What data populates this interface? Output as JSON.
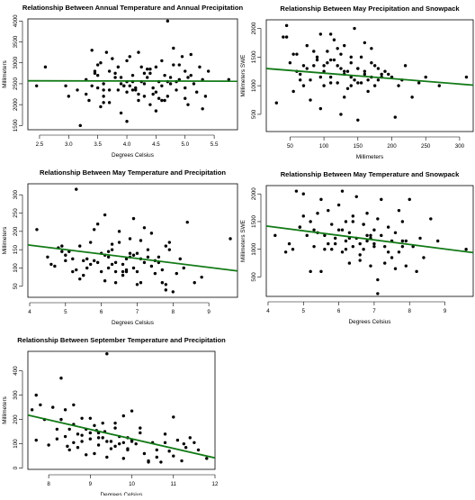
{
  "chart_data": [
    {
      "type": "scatter",
      "title": "Relationship Between Annual Temperature and Annual Precipitation",
      "xlabel": "Degrees Celsius",
      "ylabel": "Millimeters",
      "xlim": [
        2.3,
        5.9
      ],
      "ylim": [
        1400,
        4050
      ],
      "xticks": [
        2.5,
        3.0,
        3.5,
        4.0,
        4.5,
        5.0,
        5.5
      ],
      "xtick_labels": [
        "2.5",
        "3.0",
        "3.5",
        "4.0",
        "4.5",
        "5.0",
        "5.5"
      ],
      "yticks": [
        1500,
        2000,
        2500,
        3000,
        3500,
        4000
      ],
      "ytick_labels": [
        "1500",
        "2000",
        "2500",
        "3000",
        "3500",
        "4000"
      ],
      "trend": {
        "x0": 2.3,
        "y0": 2570,
        "x1": 5.9,
        "y1": 2560
      },
      "x": [
        2.45,
        2.6,
        3.0,
        3.2,
        3.3,
        3.35,
        3.4,
        3.45,
        3.5,
        3.5,
        3.55,
        3.6,
        3.6,
        3.65,
        3.7,
        3.7,
        3.75,
        3.8,
        3.85,
        3.9,
        3.9,
        3.95,
        4.0,
        4.0,
        4.05,
        4.1,
        4.1,
        4.15,
        4.2,
        4.2,
        4.25,
        4.3,
        4.3,
        4.35,
        4.4,
        4.4,
        4.45,
        4.5,
        4.5,
        4.55,
        4.6,
        4.6,
        4.65,
        4.7,
        4.7,
        4.75,
        4.8,
        4.85,
        4.9,
        4.95,
        5.0,
        5.0,
        5.05,
        5.1,
        5.15,
        5.2,
        5.25,
        5.3,
        5.35,
        5.4,
        3.4,
        3.6,
        3.8,
        4.0,
        4.2,
        4.4,
        4.6,
        4.8,
        5.0,
        3.5,
        3.7,
        3.9,
        4.1,
        4.3,
        4.5,
        4.7,
        4.9,
        3.3,
        3.6,
        4.05,
        4.35,
        4.55,
        4.75,
        5.1,
        3.45,
        3.85,
        4.25,
        4.65,
        5.05,
        4.15,
        3.55,
        3.95,
        4.45,
        4.85,
        5.3,
        4.0,
        5.75,
        2.95,
        3.15
      ],
      "y": [
        2450,
        2900,
        2200,
        1500,
        2600,
        2100,
        3300,
        2800,
        2700,
        2400,
        3000,
        2500,
        2200,
        3250,
        2350,
        2800,
        3100,
        2650,
        2900,
        1800,
        2500,
        2450,
        1600,
        2300,
        3150,
        2700,
        2550,
        2400,
        3250,
        2100,
        2900,
        2500,
        2200,
        2650,
        2000,
        2750,
        2400,
        2300,
        2900,
        2550,
        2100,
        3050,
        2700,
        4000,
        2200,
        2500,
        2950,
        2350,
        2600,
        3150,
        2400,
        2800,
        2000,
        2700,
        2500,
        2300,
        2900,
        2600,
        2200,
        2800,
        2450,
        2350,
        2750,
        2550,
        2250,
        2850,
        2450,
        3350,
        2150,
        2950,
        2050,
        2650,
        2350,
        2750,
        1850,
        2550,
        2950,
        2250,
        2050,
        2450,
        2850,
        2150,
        2650,
        3200,
        2750,
        2350,
        2550,
        2100,
        2650,
        2350,
        1950,
        2450,
        2250,
        2550,
        1900,
        3050,
        2600,
        2450,
        2350
      ]
    },
    {
      "type": "scatter",
      "title": "Relationship Between May Precipitation and Snowpack",
      "xlabel": "Millimeters",
      "ylabel": "Millimeters SWE",
      "xlim": [
        15,
        320
      ],
      "ylim": [
        200,
        2150
      ],
      "xticks": [
        50,
        100,
        150,
        200,
        250,
        300
      ],
      "xtick_labels": [
        "50",
        "100",
        "150",
        "200",
        "250",
        "300"
      ],
      "yticks": [
        500,
        1000,
        1500,
        2000
      ],
      "ytick_labels": [
        "500",
        "1000",
        "1500",
        "2000"
      ],
      "trend": {
        "x0": 15,
        "y0": 1300,
        "x1": 320,
        "y1": 1010
      },
      "x": [
        30,
        40,
        45,
        50,
        55,
        60,
        65,
        70,
        75,
        80,
        85,
        90,
        95,
        100,
        100,
        105,
        110,
        110,
        115,
        120,
        120,
        125,
        130,
        130,
        135,
        140,
        140,
        145,
        150,
        150,
        155,
        160,
        160,
        165,
        170,
        175,
        180,
        185,
        190,
        200,
        210,
        220,
        230,
        250,
        270,
        310,
        55,
        75,
        95,
        115,
        135,
        155,
        175,
        195,
        65,
        85,
        105,
        125,
        145,
        165,
        185,
        70,
        90,
        110,
        130,
        150,
        170,
        120,
        140,
        160,
        100,
        80,
        60,
        130,
        110,
        150,
        240,
        205,
        45,
        95,
        125,
        140,
        170,
        180,
        215
      ],
      "y": [
        700,
        1850,
        2050,
        1400,
        900,
        1550,
        1200,
        1000,
        1700,
        1100,
        1350,
        1500,
        1900,
        1250,
        1000,
        1600,
        1450,
        1150,
        1800,
        1350,
        1050,
        1550,
        1250,
        1700,
        950,
        1400,
        1150,
        2000,
        1300,
        1050,
        1500,
        1200,
        1750,
        1100,
        1400,
        1000,
        1300,
        1150,
        1250,
        1150,
        1000,
        1350,
        800,
        1150,
        1000,
        1150,
        1550,
        1300,
        1150,
        1450,
        1250,
        1050,
        1350,
        1200,
        1100,
        1600,
        1400,
        1300,
        1100,
        900,
        1200,
        1350,
        1450,
        1050,
        1200,
        1300,
        1150,
        1650,
        1500,
        1250,
        1350,
        750,
        1250,
        800,
        1900,
        400,
        1050,
        450,
        1850,
        600,
        500,
        1000,
        1650,
        1100,
        1100
      ]
    },
    {
      "type": "scatter",
      "title": "Relationship Between May Temperature and Precipitation",
      "xlabel": "Degrees Celsius",
      "ylabel": "Millimeters",
      "xlim": [
        3.95,
        9.8
      ],
      "ylim": [
        20,
        330
      ],
      "xticks": [
        4,
        5,
        6,
        7,
        8,
        9
      ],
      "xtick_labels": [
        "4",
        "5",
        "6",
        "7",
        "8",
        "9"
      ],
      "yticks": [
        50,
        100,
        150,
        200,
        250,
        300
      ],
      "ytick_labels": [
        "50",
        "100",
        "150",
        "200",
        "250",
        "300"
      ],
      "trend": {
        "x0": 3.95,
        "y0": 163,
        "x1": 9.8,
        "y1": 92
      },
      "x": [
        4.2,
        4.5,
        4.6,
        4.7,
        4.8,
        4.9,
        5.0,
        5.0,
        5.1,
        5.2,
        5.3,
        5.3,
        5.4,
        5.5,
        5.5,
        5.6,
        5.7,
        5.8,
        5.8,
        5.9,
        6.0,
        6.0,
        6.1,
        6.1,
        6.2,
        6.2,
        6.3,
        6.3,
        6.4,
        6.4,
        6.5,
        6.5,
        6.6,
        6.6,
        6.7,
        6.7,
        6.8,
        6.8,
        6.9,
        6.9,
        7.0,
        7.0,
        7.1,
        7.1,
        7.2,
        7.2,
        7.3,
        7.3,
        7.4,
        7.5,
        7.5,
        7.6,
        7.7,
        7.8,
        7.8,
        7.9,
        8.0,
        8.1,
        8.2,
        8.3,
        8.4,
        8.6,
        9.6,
        5.4,
        5.9,
        6.4,
        6.9,
        7.4,
        7.9,
        4.9,
        5.6,
        6.3,
        7.0,
        7.7,
        6.1,
        6.6,
        7.1,
        5.7,
        6.8,
        7.6,
        8.8,
        6.2,
        6.7,
        5.2,
        7.8
      ],
      "y": [
        205,
        130,
        110,
        105,
        155,
        160,
        135,
        120,
        145,
        125,
        315,
        95,
        160,
        120,
        80,
        100,
        170,
        205,
        120,
        220,
        140,
        90,
        65,
        245,
        130,
        100,
        165,
        150,
        60,
        115,
        200,
        170,
        110,
        80,
        125,
        95,
        180,
        140,
        235,
        100,
        90,
        140,
        175,
        60,
        115,
        210,
        150,
        130,
        195,
        120,
        85,
        130,
        95,
        55,
        160,
        170,
        35,
        85,
        125,
        100,
        225,
        60,
        180,
        70,
        115,
        90,
        135,
        105,
        150,
        145,
        125,
        110,
        55,
        60,
        135,
        90,
        125,
        110,
        130,
        115,
        75,
        145,
        90,
        90,
        40
      ]
    },
    {
      "type": "scatter",
      "title": "Relationship Between May Temperature and Snowpack",
      "xlabel": "Degrees Celsius",
      "ylabel": "Millimeters SWE",
      "xlim": [
        3.95,
        9.8
      ],
      "ylim": [
        150,
        2150
      ],
      "xticks": [
        4,
        5,
        6,
        7,
        8,
        9
      ],
      "xtick_labels": [
        "4",
        "5",
        "6",
        "7",
        "8",
        "9"
      ],
      "yticks": [
        500,
        1000,
        1500,
        2000
      ],
      "ytick_labels": [
        "500",
        "1000",
        "1500",
        "2000"
      ],
      "trend": {
        "x0": 3.95,
        "y0": 1420,
        "x1": 9.8,
        "y1": 940
      },
      "x": [
        4.2,
        4.5,
        4.6,
        4.7,
        4.8,
        4.9,
        5.0,
        5.0,
        5.1,
        5.2,
        5.3,
        5.3,
        5.4,
        5.5,
        5.5,
        5.6,
        5.7,
        5.8,
        5.8,
        5.9,
        6.0,
        6.0,
        6.1,
        6.1,
        6.2,
        6.2,
        6.3,
        6.3,
        6.4,
        6.4,
        6.5,
        6.5,
        6.6,
        6.6,
        6.7,
        6.7,
        6.8,
        6.8,
        6.9,
        6.9,
        7.0,
        7.0,
        7.1,
        7.1,
        7.2,
        7.2,
        7.3,
        7.3,
        7.4,
        7.5,
        7.5,
        7.6,
        7.7,
        7.8,
        7.8,
        7.9,
        8.0,
        8.1,
        8.2,
        8.3,
        8.4,
        8.6,
        9.6,
        5.4,
        5.9,
        6.4,
        6.9,
        7.4,
        7.9,
        4.9,
        5.6,
        6.3,
        7.0,
        7.7,
        6.1,
        6.6,
        7.1,
        5.7,
        6.8,
        7.6,
        8.8,
        6.2,
        6.7,
        5.2,
        7.8
      ],
      "y": [
        1250,
        950,
        1100,
        1000,
        2050,
        1400,
        2000,
        1600,
        1250,
        1500,
        1350,
        1050,
        1650,
        1900,
        600,
        1250,
        1700,
        1450,
        1000,
        1200,
        1800,
        1350,
        950,
        2050,
        1150,
        1500,
        1300,
        750,
        1600,
        1050,
        1950,
        1200,
        1100,
        800,
        1450,
        1000,
        1650,
        1150,
        1200,
        700,
        1350,
        1100,
        1550,
        450,
        1250,
        1900,
        1050,
        750,
        1400,
        1150,
        850,
        1300,
        950,
        1150,
        1500,
        700,
        1900,
        1050,
        600,
        1200,
        850,
        1550,
        1000,
        1300,
        1100,
        1500,
        1250,
        950,
        1150,
        1400,
        1000,
        1200,
        1050,
        1700,
        1350,
        900,
        200,
        1100,
        1250,
        650,
        1150,
        1000,
        1450,
        600,
        1050
      ]
    },
    {
      "type": "scatter",
      "title": "Relationship Between September Temperature and Precipitation",
      "xlabel": "Degrees Celsius",
      "ylabel": "Millimeters",
      "xlim": [
        7.5,
        12.0
      ],
      "ylim": [
        -5,
        480
      ],
      "xticks": [
        8,
        9,
        10,
        11,
        12
      ],
      "xtick_labels": [
        "8",
        "9",
        "10",
        "11",
        "12"
      ],
      "yticks": [
        0,
        100,
        200,
        300,
        400
      ],
      "ytick_labels": [
        "0",
        "100",
        "200",
        "300",
        "400"
      ],
      "trend": {
        "x0": 7.5,
        "y0": 218,
        "x1": 12.0,
        "y1": 42
      },
      "x": [
        7.6,
        7.7,
        7.7,
        7.8,
        7.9,
        8.0,
        8.1,
        8.2,
        8.3,
        8.3,
        8.4,
        8.4,
        8.5,
        8.5,
        8.6,
        8.6,
        8.7,
        8.7,
        8.8,
        8.8,
        8.9,
        8.9,
        9.0,
        9.0,
        9.1,
        9.1,
        9.2,
        9.2,
        9.3,
        9.3,
        9.4,
        9.4,
        9.5,
        9.5,
        9.6,
        9.6,
        9.7,
        9.7,
        9.8,
        9.8,
        9.9,
        9.9,
        10.0,
        10.0,
        10.1,
        10.2,
        10.3,
        10.4,
        10.5,
        10.6,
        10.7,
        10.8,
        10.9,
        11.0,
        11.1,
        11.2,
        11.3,
        11.4,
        11.5,
        11.6,
        11.8,
        8.2,
        8.6,
        9.0,
        9.4,
        9.8,
        10.2,
        10.6,
        11.0,
        8.8,
        9.2,
        9.6,
        10.0,
        10.4,
        9.35,
        8.45,
        9.15,
        9.9,
        10.8,
        11.25
      ],
      "y": [
        240,
        115,
        300,
        260,
        200,
        95,
        250,
        120,
        370,
        200,
        240,
        130,
        160,
        75,
        105,
        180,
        140,
        85,
        205,
        110,
        160,
        55,
        205,
        120,
        175,
        60,
        145,
        95,
        185,
        125,
        470,
        45,
        110,
        80,
        185,
        165,
        100,
        130,
        215,
        40,
        125,
        80,
        235,
        115,
        100,
        165,
        60,
        30,
        105,
        75,
        25,
        105,
        70,
        210,
        115,
        30,
        85,
        125,
        105,
        75,
        40,
        160,
        260,
        145,
        110,
        105,
        145,
        45,
        50,
        135,
        125,
        90,
        110,
        25,
        150,
        90,
        155,
        75,
        140,
        100
      ]
    }
  ]
}
